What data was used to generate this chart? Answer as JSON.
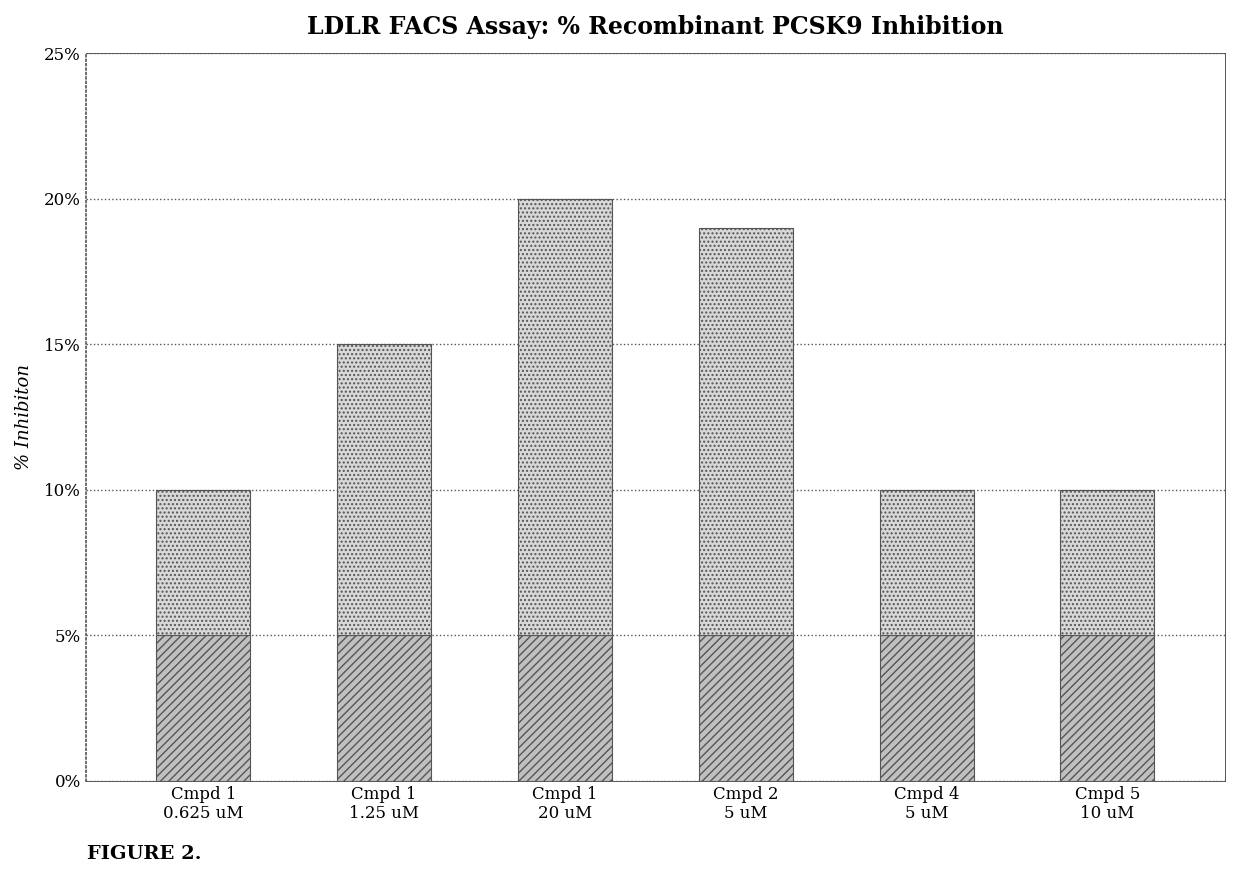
{
  "title": "LDLR FACS Assay: % Recombinant PCSK9 Inhibition",
  "ylabel": "% Inhibiton",
  "categories": [
    "Cmpd 1\n0.625 uM",
    "Cmpd 1\n1.25 uM",
    "Cmpd 1\n20 uM",
    "Cmpd 2\n5 uM",
    "Cmpd 4\n5 uM",
    "Cmpd 5\n10 uM"
  ],
  "values": [
    0.1,
    0.15,
    0.2,
    0.19,
    0.1,
    0.1
  ],
  "split_values": [
    0.05,
    0.05,
    0.05,
    0.05,
    0.05,
    0.05
  ],
  "ylim": [
    0,
    0.25
  ],
  "yticks": [
    0.0,
    0.05,
    0.1,
    0.15,
    0.2,
    0.25
  ],
  "ytick_labels": [
    "0%",
    "5%",
    "10%",
    "15%",
    "20%",
    "25%"
  ],
  "bar_color_top": "#d8d8d8",
  "bar_color_bottom": "#c0c0c0",
  "bar_edgecolor": "#555555",
  "hatch_top": "....",
  "hatch_bottom": "////",
  "figure_caption": "FIGURE 2.",
  "background_color": "#ffffff",
  "plot_bg_color": "#ffffff",
  "title_fontsize": 17,
  "axis_label_fontsize": 13,
  "tick_fontsize": 12,
  "caption_fontsize": 14,
  "bar_width": 0.52
}
